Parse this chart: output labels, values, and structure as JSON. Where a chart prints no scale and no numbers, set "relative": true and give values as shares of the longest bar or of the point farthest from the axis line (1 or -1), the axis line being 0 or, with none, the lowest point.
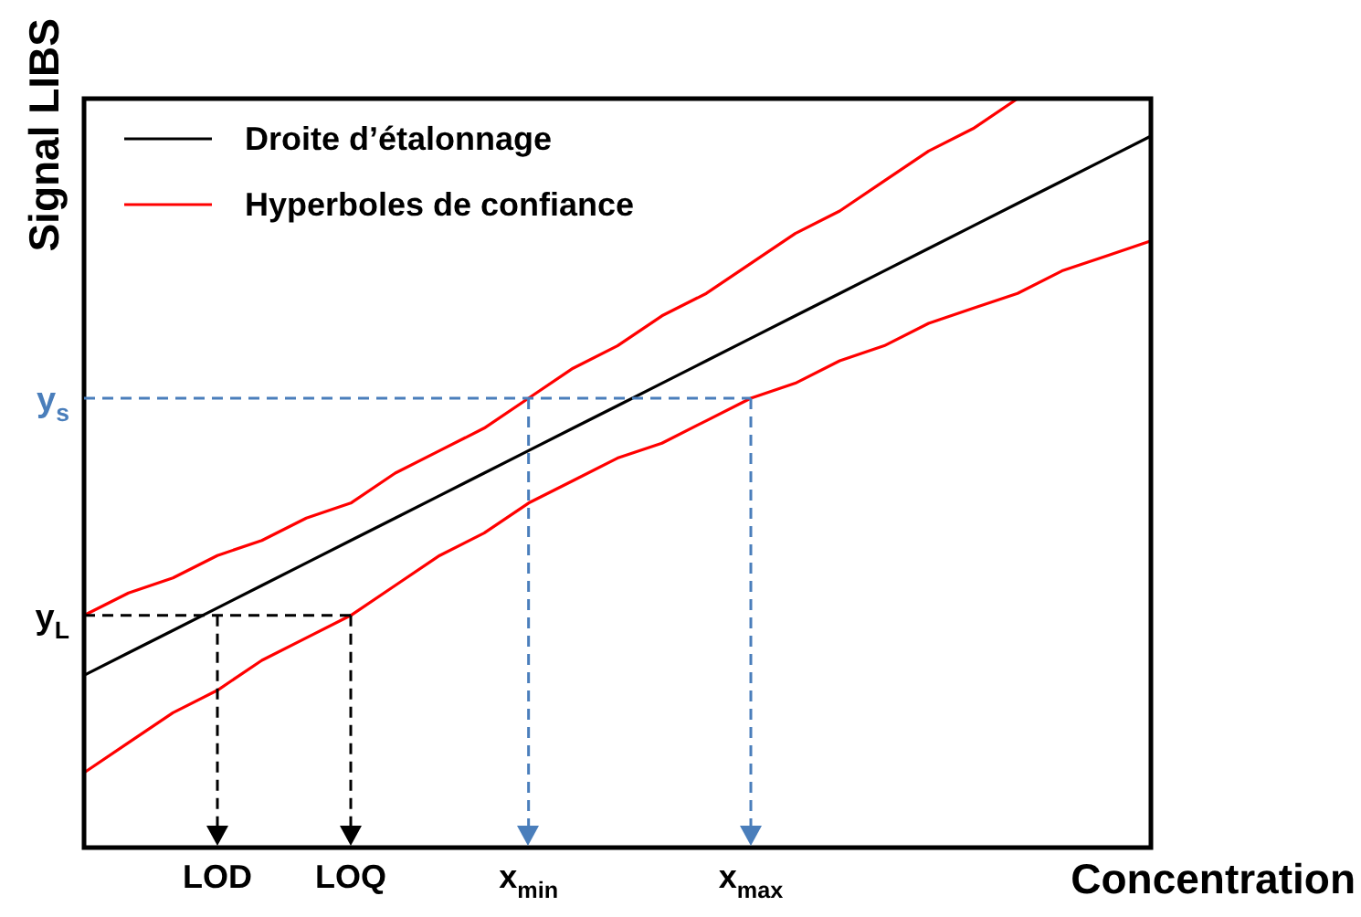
{
  "chart_data": {
    "type": "line",
    "relative": true,
    "xlabel": "Concentration",
    "ylabel": "Signal LIBS",
    "categories": [
      null,
      null,
      null,
      "LOD",
      null,
      null,
      "LOQ",
      null,
      null,
      null,
      "x$_{min}$",
      null,
      null,
      null,
      null,
      "x$_{max}$",
      null,
      null,
      null,
      null,
      null,
      null,
      null,
      null,
      null
    ],
    "series": [
      {
        "name": "Droite d’étalonnage",
        "color": "#000000",
        "values": [
          0.23,
          0.26,
          0.29,
          0.32,
          0.35,
          0.38,
          0.41,
          0.44,
          0.47,
          0.5,
          0.53,
          0.56,
          0.59,
          0.62,
          0.65,
          0.68,
          0.71,
          0.74,
          0.77,
          0.8,
          0.83,
          0.86,
          0.89,
          0.92,
          0.95
        ]
      },
      {
        "name": "Hyperboles de confiance",
        "color": "#ff0000",
        "values": [
          0.31,
          0.34,
          0.36,
          0.39,
          0.41,
          0.44,
          0.46,
          0.5,
          0.53,
          0.56,
          0.6,
          0.64,
          0.67,
          0.71,
          0.74,
          0.78,
          0.82,
          0.85,
          0.89,
          0.93,
          0.96,
          1,
          null,
          null,
          null
        ]
      },
      {
        "color": "#ff0000",
        "values": [
          0.1,
          0.14,
          0.18,
          0.21,
          0.25,
          0.28,
          0.31,
          0.35,
          0.39,
          0.42,
          0.46,
          0.49,
          0.52,
          0.54,
          0.57,
          0.6,
          0.62,
          0.65,
          0.67,
          0.7,
          0.72,
          0.74,
          0.77,
          0.79,
          0.81
        ]
      }
    ],
    "ref_lines": [
      {
        "axis": "y",
        "value": 0.6,
        "label": "y$_{s}$",
        "color": "#4a7ebb",
        "line_style": "dashed"
      },
      {
        "axis": "y",
        "value": 0.31,
        "label": "y$_{L}$",
        "color": "#000000",
        "line_style": "dashed"
      },
      {
        "axis": "x",
        "value": "LOD",
        "color": "#000000",
        "line_style": "dashed"
      },
      {
        "axis": "x",
        "value": "LOQ",
        "color": "#000000",
        "line_style": "dashed"
      },
      {
        "axis": "x",
        "value": "x$_{min}$",
        "color": "#4a7ebb",
        "line_style": "dashed"
      },
      {
        "axis": "x",
        "value": "x$_{max}$",
        "color": "#4a7ebb",
        "line_style": "dashed"
      }
    ],
    "legend": "top left",
    "grid": false,
    "marker": "none",
    "line_style": "solid"
  }
}
